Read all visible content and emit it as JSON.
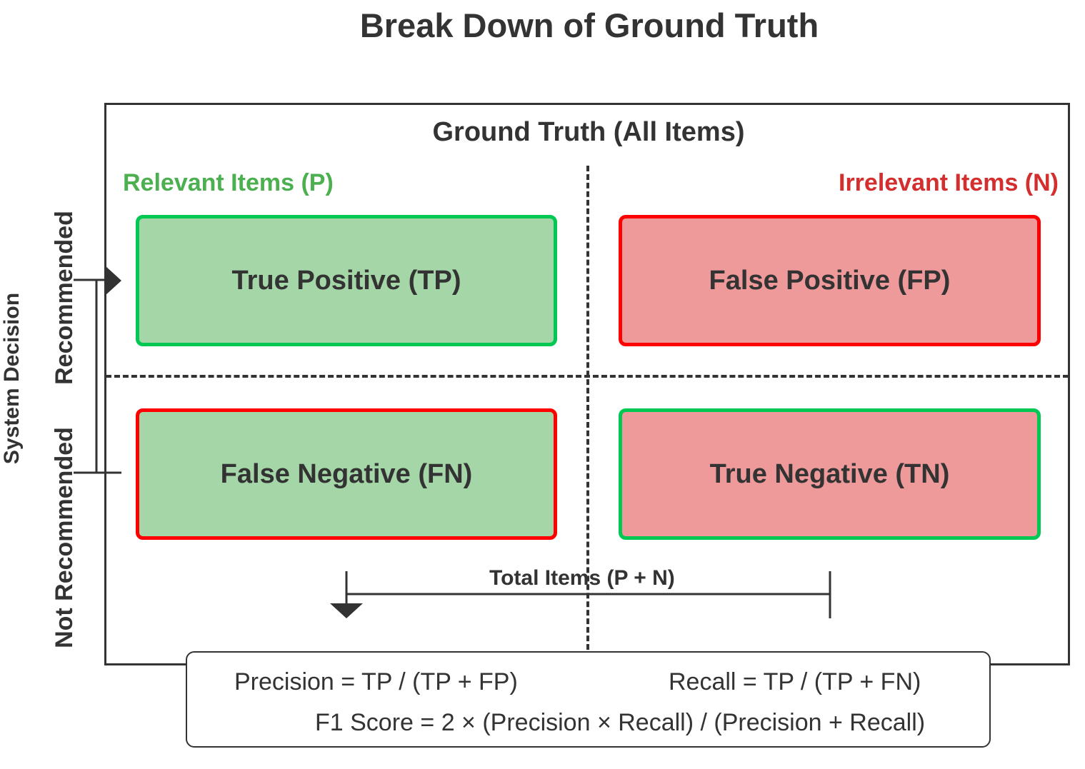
{
  "title": "Break Down of Ground Truth",
  "ground_truth_label": "Ground Truth (All Items)",
  "columns": {
    "relevant": "Relevant Items (P)",
    "irrelevant": "Irrelevant Items (N)"
  },
  "rows": {
    "axis_label": "System Decision",
    "recommended": "Recommended",
    "not_recommended": "Not Recommended"
  },
  "cells": {
    "tp": "True Positive (TP)",
    "fp": "False Positive (FP)",
    "fn": "False Negative (FN)",
    "tn": "True Negative (TN)"
  },
  "total_label": "Total Items (P + N)",
  "formulas": {
    "precision": "Precision = TP / (TP + FP)",
    "recall": "Recall = TP / (TP + FN)",
    "f1": "F1 Score = 2 × (Precision × Recall) / (Precision + Recall)"
  },
  "colors": {
    "relevant_text": "#4caf50",
    "irrelevant_text": "#d32f2f",
    "green_fill": "#a5d6a7",
    "red_fill": "#ef9a9a",
    "green_border": "#00c853",
    "red_border": "#ff0000",
    "line": "#333333"
  }
}
